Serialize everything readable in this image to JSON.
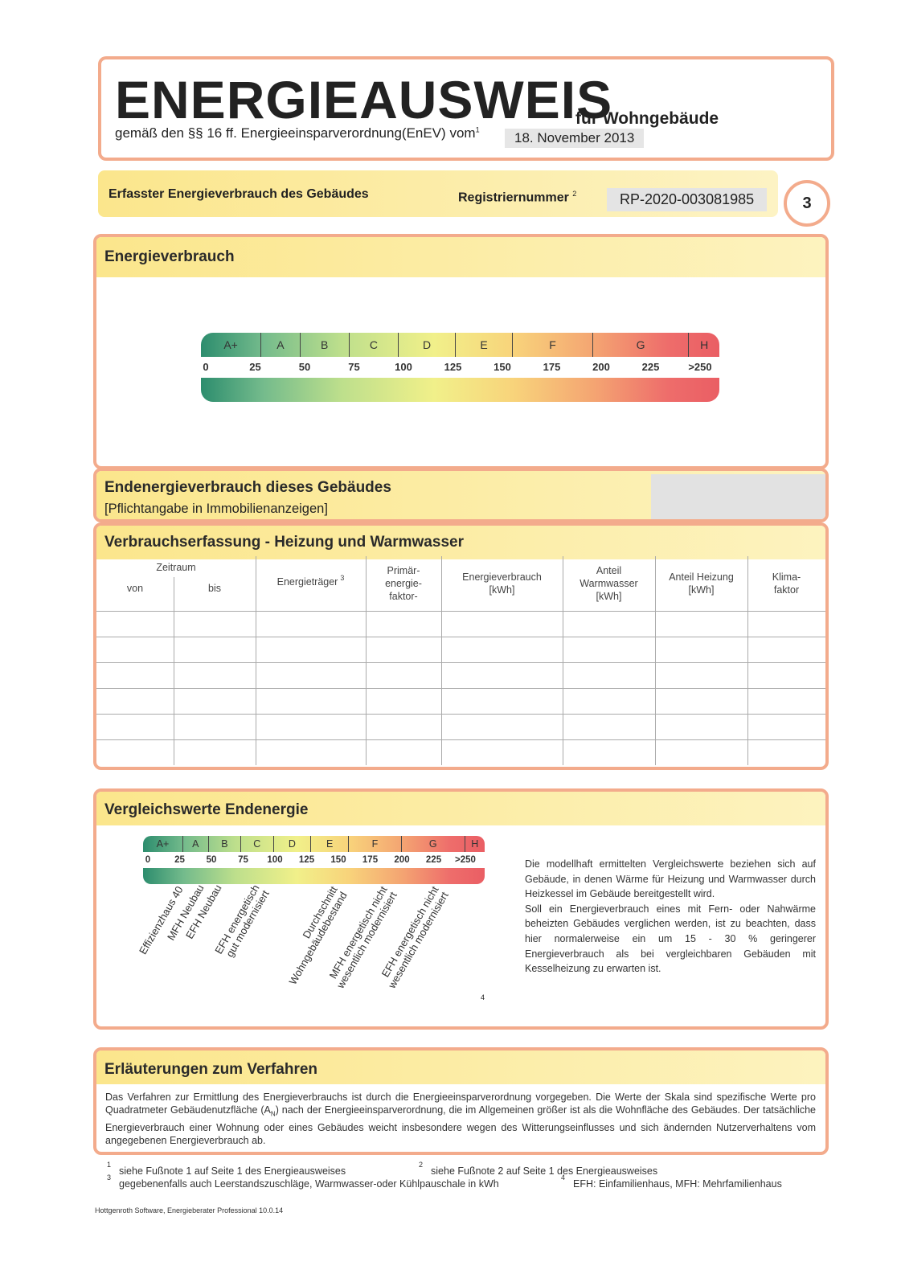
{
  "header": {
    "title": "ENERGIEAUSWEIS",
    "subtitle": "für Wohngebäude",
    "basis": "gemäß den §§ 16 ff. Energieeinsparverordnung(EnEV) vom",
    "basis_note": "1",
    "date": "18. November 2013"
  },
  "summary": {
    "label": "Erfasster Energieverbrauch des Gebäudes",
    "registration_label": "Registriernummer",
    "registration_note": "2",
    "registration_number": "RP-2020-003081985",
    "page": "3"
  },
  "consumption": {
    "title": "Energieverbrauch",
    "classes": [
      "A+",
      "A",
      "B",
      "C",
      "D",
      "E",
      "F",
      "G",
      "H"
    ],
    "ticks": [
      "0",
      "25",
      "50",
      "75",
      "100",
      "125",
      "150",
      "175",
      "200",
      "225",
      ">250"
    ]
  },
  "final_energy": {
    "title": "Endenergieverbrauch dieses Gebäudes",
    "subtitle": "[Pflichtangabe in Immobilienanzeigen]"
  },
  "recording": {
    "title": "Verbrauchserfassung - Heizung und Warmwasser",
    "period": "Zeitraum",
    "from": "von",
    "to": "bis",
    "carrier": "Energieträger",
    "carrier_note": "3",
    "columns": [
      "Primär-\nenergie-\nfaktor-",
      "Energieverbrauch\n[kWh]",
      "Anteil\nWarmwasser\n[kWh]",
      "Anteil Heizung\n[kWh]",
      "Klima-\nfaktor"
    ]
  },
  "comparison": {
    "title": "Vergleichswerte Endenergie",
    "classes": [
      "A+",
      "A",
      "B",
      "C",
      "D",
      "E",
      "F",
      "G",
      "H"
    ],
    "ticks": [
      "0",
      "25",
      "50",
      "75",
      "100",
      "125",
      "150",
      "175",
      "200",
      "225",
      ">250"
    ],
    "buildings": [
      [
        "Effizienzhaus 40"
      ],
      [
        "MFH Neubau"
      ],
      [
        "EFH Neubau"
      ],
      [
        "EFH energetisch",
        "gut modernisiert"
      ],
      [
        "Durchschnitt",
        "Wohngebäudebestand"
      ],
      [
        "MFH energetisch nicht",
        "wesentlich modernisiert"
      ],
      [
        "EFH energetisch nicht",
        "wesentlich modernisiert"
      ]
    ],
    "note": "4",
    "paragraphs": [
      "Die modellhaft ermittelten Vergleichswerte beziehen sich auf Gebäude, in denen Wärme für Heizung und Warmwasser durch Heizkessel im Gebäude bereitgestellt wird.",
      "Soll ein Energieverbrauch eines mit Fern- oder Nahwärme beheizten Gebäudes verglichen werden, ist zu beachten, dass hier normalerweise ein um 15 - 30 % geringerer Energieverbrauch als bei vergleichbaren Gebäuden mit Kesselheizung zu erwarten ist."
    ]
  },
  "explanation": {
    "title": "Erläuterungen zum Verfahren",
    "text_before": "Das Verfahren zur Ermittlung des Energieverbrauchs ist durch die Energieeinsparverordnung vorgegeben. Die Werte der Skala sind spezifische Werte pro Quadratmeter Gebäudenutzfläche (A",
    "subscript": "N",
    "text_after": ") nach der Energieeinsparverordnung, die im Allgemeinen größer ist als die Wohnfläche des Gebäudes. Der tatsächliche Energieverbrauch einer Wohnung oder eines Gebäudes weicht insbesondere wegen des Witterungseinflusses und sich ändernden Nutzerverhaltens vom angegebenen Energieverbrauch ab."
  },
  "footnotes": [
    {
      "mark": "1",
      "text": "siehe Fußnote 1 auf Seite 1 des Energieausweises"
    },
    {
      "mark": "2",
      "text": "siehe Fußnote 2 auf Seite 1 des Energieausweises"
    },
    {
      "mark": "3",
      "text": "gegebenenfalls auch Leerstandszuschläge, Warmwasser-oder Kühlpauschale in kWh"
    },
    {
      "mark": "4",
      "text": "EFH: Einfamilienhaus, MFH: Mehrfamilienhaus"
    }
  ],
  "software": "Hottgenroth Software, Energieberater Professional 10.0.14"
}
